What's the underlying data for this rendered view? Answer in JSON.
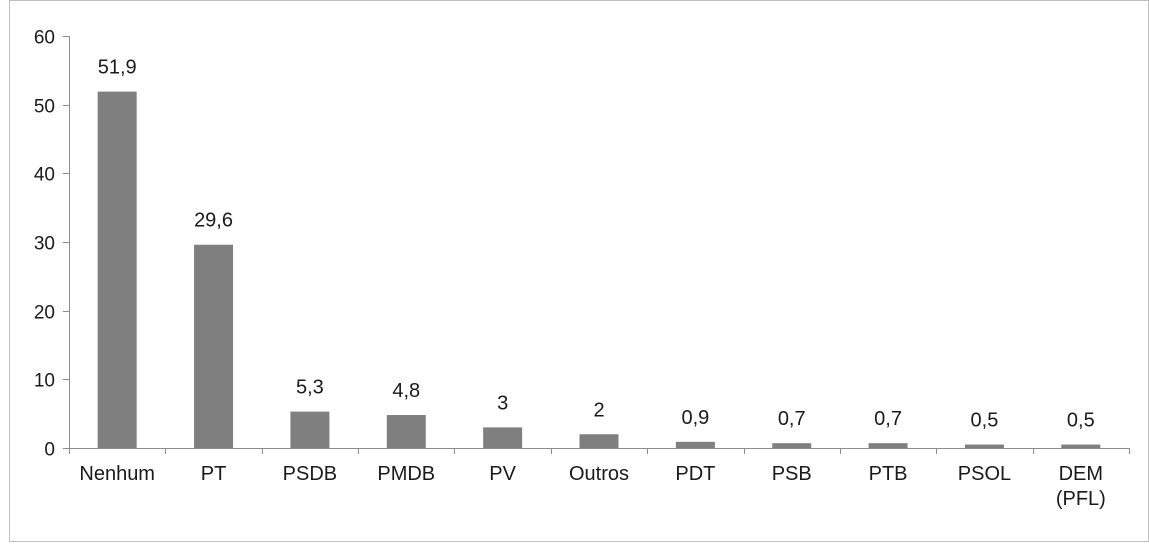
{
  "chart_data": {
    "type": "bar",
    "categories": [
      "Nenhum",
      "PT",
      "PSDB",
      "PMDB",
      "PV",
      "Outros",
      "PDT",
      "PSB",
      "PTB",
      "PSOL",
      "DEM (PFL)"
    ],
    "category_lines": [
      [
        "Nenhum"
      ],
      [
        "PT"
      ],
      [
        "PSDB"
      ],
      [
        "PMDB"
      ],
      [
        "PV"
      ],
      [
        "Outros"
      ],
      [
        "PDT"
      ],
      [
        "PSB"
      ],
      [
        "PTB"
      ],
      [
        "PSOL"
      ],
      [
        "DEM",
        "(PFL)"
      ]
    ],
    "values": [
      51.9,
      29.6,
      5.3,
      4.8,
      3,
      2,
      0.9,
      0.7,
      0.7,
      0.5,
      0.5
    ],
    "value_labels": [
      "51,9",
      "29,6",
      "5,3",
      "4,8",
      "3",
      "2",
      "0,9",
      "0,7",
      "0,7",
      "0,5",
      "0,5"
    ],
    "yticks": [
      0,
      10,
      20,
      30,
      40,
      50,
      60
    ],
    "ylim": [
      0,
      60
    ],
    "title": "",
    "xlabel": "",
    "ylabel": "",
    "grid": false,
    "legend": "none",
    "bar_color": "#7f7f7f",
    "axis_color": "#8c8c8c"
  }
}
